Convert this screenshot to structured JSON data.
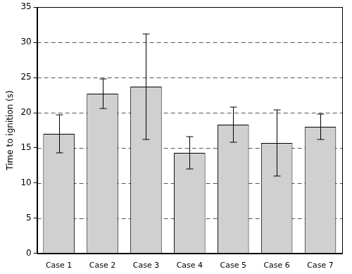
{
  "chart_data": {
    "type": "bar",
    "y_label": "Time to ignition (s)",
    "categories": [
      "Case 1",
      "Case 2",
      "Case 3",
      "Case 4",
      "Case 5",
      "Case 6",
      "Case 7"
    ],
    "values": [
      17.0,
      22.7,
      23.7,
      14.3,
      18.3,
      15.7,
      18.0
    ],
    "errors": [
      2.7,
      2.1,
      7.5,
      2.3,
      2.5,
      4.7,
      1.8
    ],
    "color": "#d0d0d0",
    "ylim": [
      0,
      35
    ],
    "yticks": [
      0,
      5,
      10,
      15,
      20,
      25,
      30,
      35
    ],
    "grid": true
  }
}
